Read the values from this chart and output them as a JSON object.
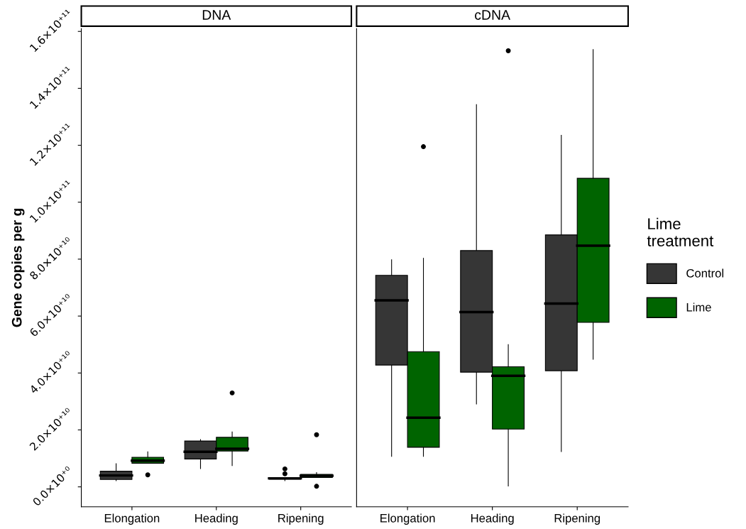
{
  "chart_data": [
    {
      "type": "box",
      "title": "DNA",
      "ylabel": "Gene copies per g",
      "categories": [
        "Elongation",
        "Heading",
        "Ripening"
      ],
      "ylim": [
        -7000000000.0,
        161000000000.0
      ],
      "yticks": [
        {
          "value": 0,
          "label": "0.0×10⁺⁰"
        },
        {
          "value": 20000000000.0,
          "label": "2.0×10⁺¹⁰"
        },
        {
          "value": 40000000000.0,
          "label": "4.0×10⁺¹⁰"
        },
        {
          "value": 60000000000.0,
          "label": "6.0×10⁺¹⁰"
        },
        {
          "value": 80000000000.0,
          "label": "8.0×10⁺¹⁰"
        },
        {
          "value": 100000000000.0,
          "label": "1.0×10⁺¹¹"
        },
        {
          "value": 120000000000.0,
          "label": "1.2×10⁺¹¹"
        },
        {
          "value": 140000000000.0,
          "label": "1.4×10⁺¹¹"
        },
        {
          "value": 160000000000.0,
          "label": "1.6×10⁺¹¹"
        }
      ],
      "grid": false,
      "series": [
        {
          "color": "#363636",
          "boxes": [
            {
              "low": 2200000000.0,
              "q1": 2600000000.0,
              "median": 4000000000.0,
              "q3": 5500000000.0,
              "high": 8100000000.0
            },
            {
              "low": 6400000000.0,
              "q1": 9800000000.0,
              "median": 12300000000.0,
              "q3": 16100000000.0,
              "high": 16600000000.0
            },
            {
              "low": 2200000000.0,
              "q1": 2700000000.0,
              "median": 3000000000.0,
              "q3": 3200000000.0,
              "high": 3200000000.0,
              "outliers": [
                6300000000.0,
                4600000000.0
              ]
            }
          ]
        },
        {
          "color": "#006400",
          "boxes": [
            {
              "low": 8300000000.0,
              "q1": 8300000000.0,
              "median": 9200000000.0,
              "q3": 10400000000.0,
              "high": 12300000000.0,
              "outliers": [
                4200000000.0
              ]
            },
            {
              "low": 7500000000.0,
              "q1": 12600000000.0,
              "median": 13400000000.0,
              "q3": 17400000000.0,
              "high": 19300000000.0,
              "outliers": [
                33000000000.0
              ]
            },
            {
              "low": 3300000000.0,
              "q1": 3300000000.0,
              "median": 3900000000.0,
              "q3": 4400000000.0,
              "high": 5000000000.0,
              "outliers": [
                18300000000.0,
                200000000.0
              ]
            }
          ]
        }
      ]
    },
    {
      "type": "box",
      "title": "cDNA",
      "categories": [
        "Elongation",
        "Heading",
        "Ripening"
      ],
      "ylim": [
        -7000000000.0,
        161000000000.0
      ],
      "tick_labels": "x",
      "grid": false,
      "legend": "right",
      "legend_title": "Lime\ntreatment",
      "series": [
        {
          "name": "Control",
          "color": "#363636",
          "boxes": [
            {
              "low": 10700000000.0,
              "q1": 42800000000.0,
              "median": 65500000000.0,
              "q3": 74300000000.0,
              "high": 79800000000.0
            },
            {
              "low": 29100000000.0,
              "q1": 40300000000.0,
              "median": 61400000000.0,
              "q3": 83000000000.0,
              "high": 134300000000.0
            },
            {
              "low": 12400000000.0,
              "q1": 40800000000.0,
              "median": 64400000000.0,
              "q3": 88500000000.0,
              "high": 123500000000.0
            }
          ]
        },
        {
          "name": "Lime",
          "color": "#006400",
          "boxes": [
            {
              "low": 10700000000.0,
              "q1": 13900000000.0,
              "median": 24300000000.0,
              "q3": 47500000000.0,
              "high": 80300000000.0,
              "outliers": [
                119500000000.0
              ]
            },
            {
              "low": 300000000.0,
              "q1": 20300000000.0,
              "median": 39000000000.0,
              "q3": 42200000000.0,
              "high": 50000000000.0,
              "outliers": [
                153200000000.0
              ]
            },
            {
              "low": 44800000000.0,
              "q1": 57800000000.0,
              "median": 84700000000.0,
              "q3": 108400000000.0,
              "high": 153600000000.0
            }
          ]
        }
      ]
    }
  ]
}
